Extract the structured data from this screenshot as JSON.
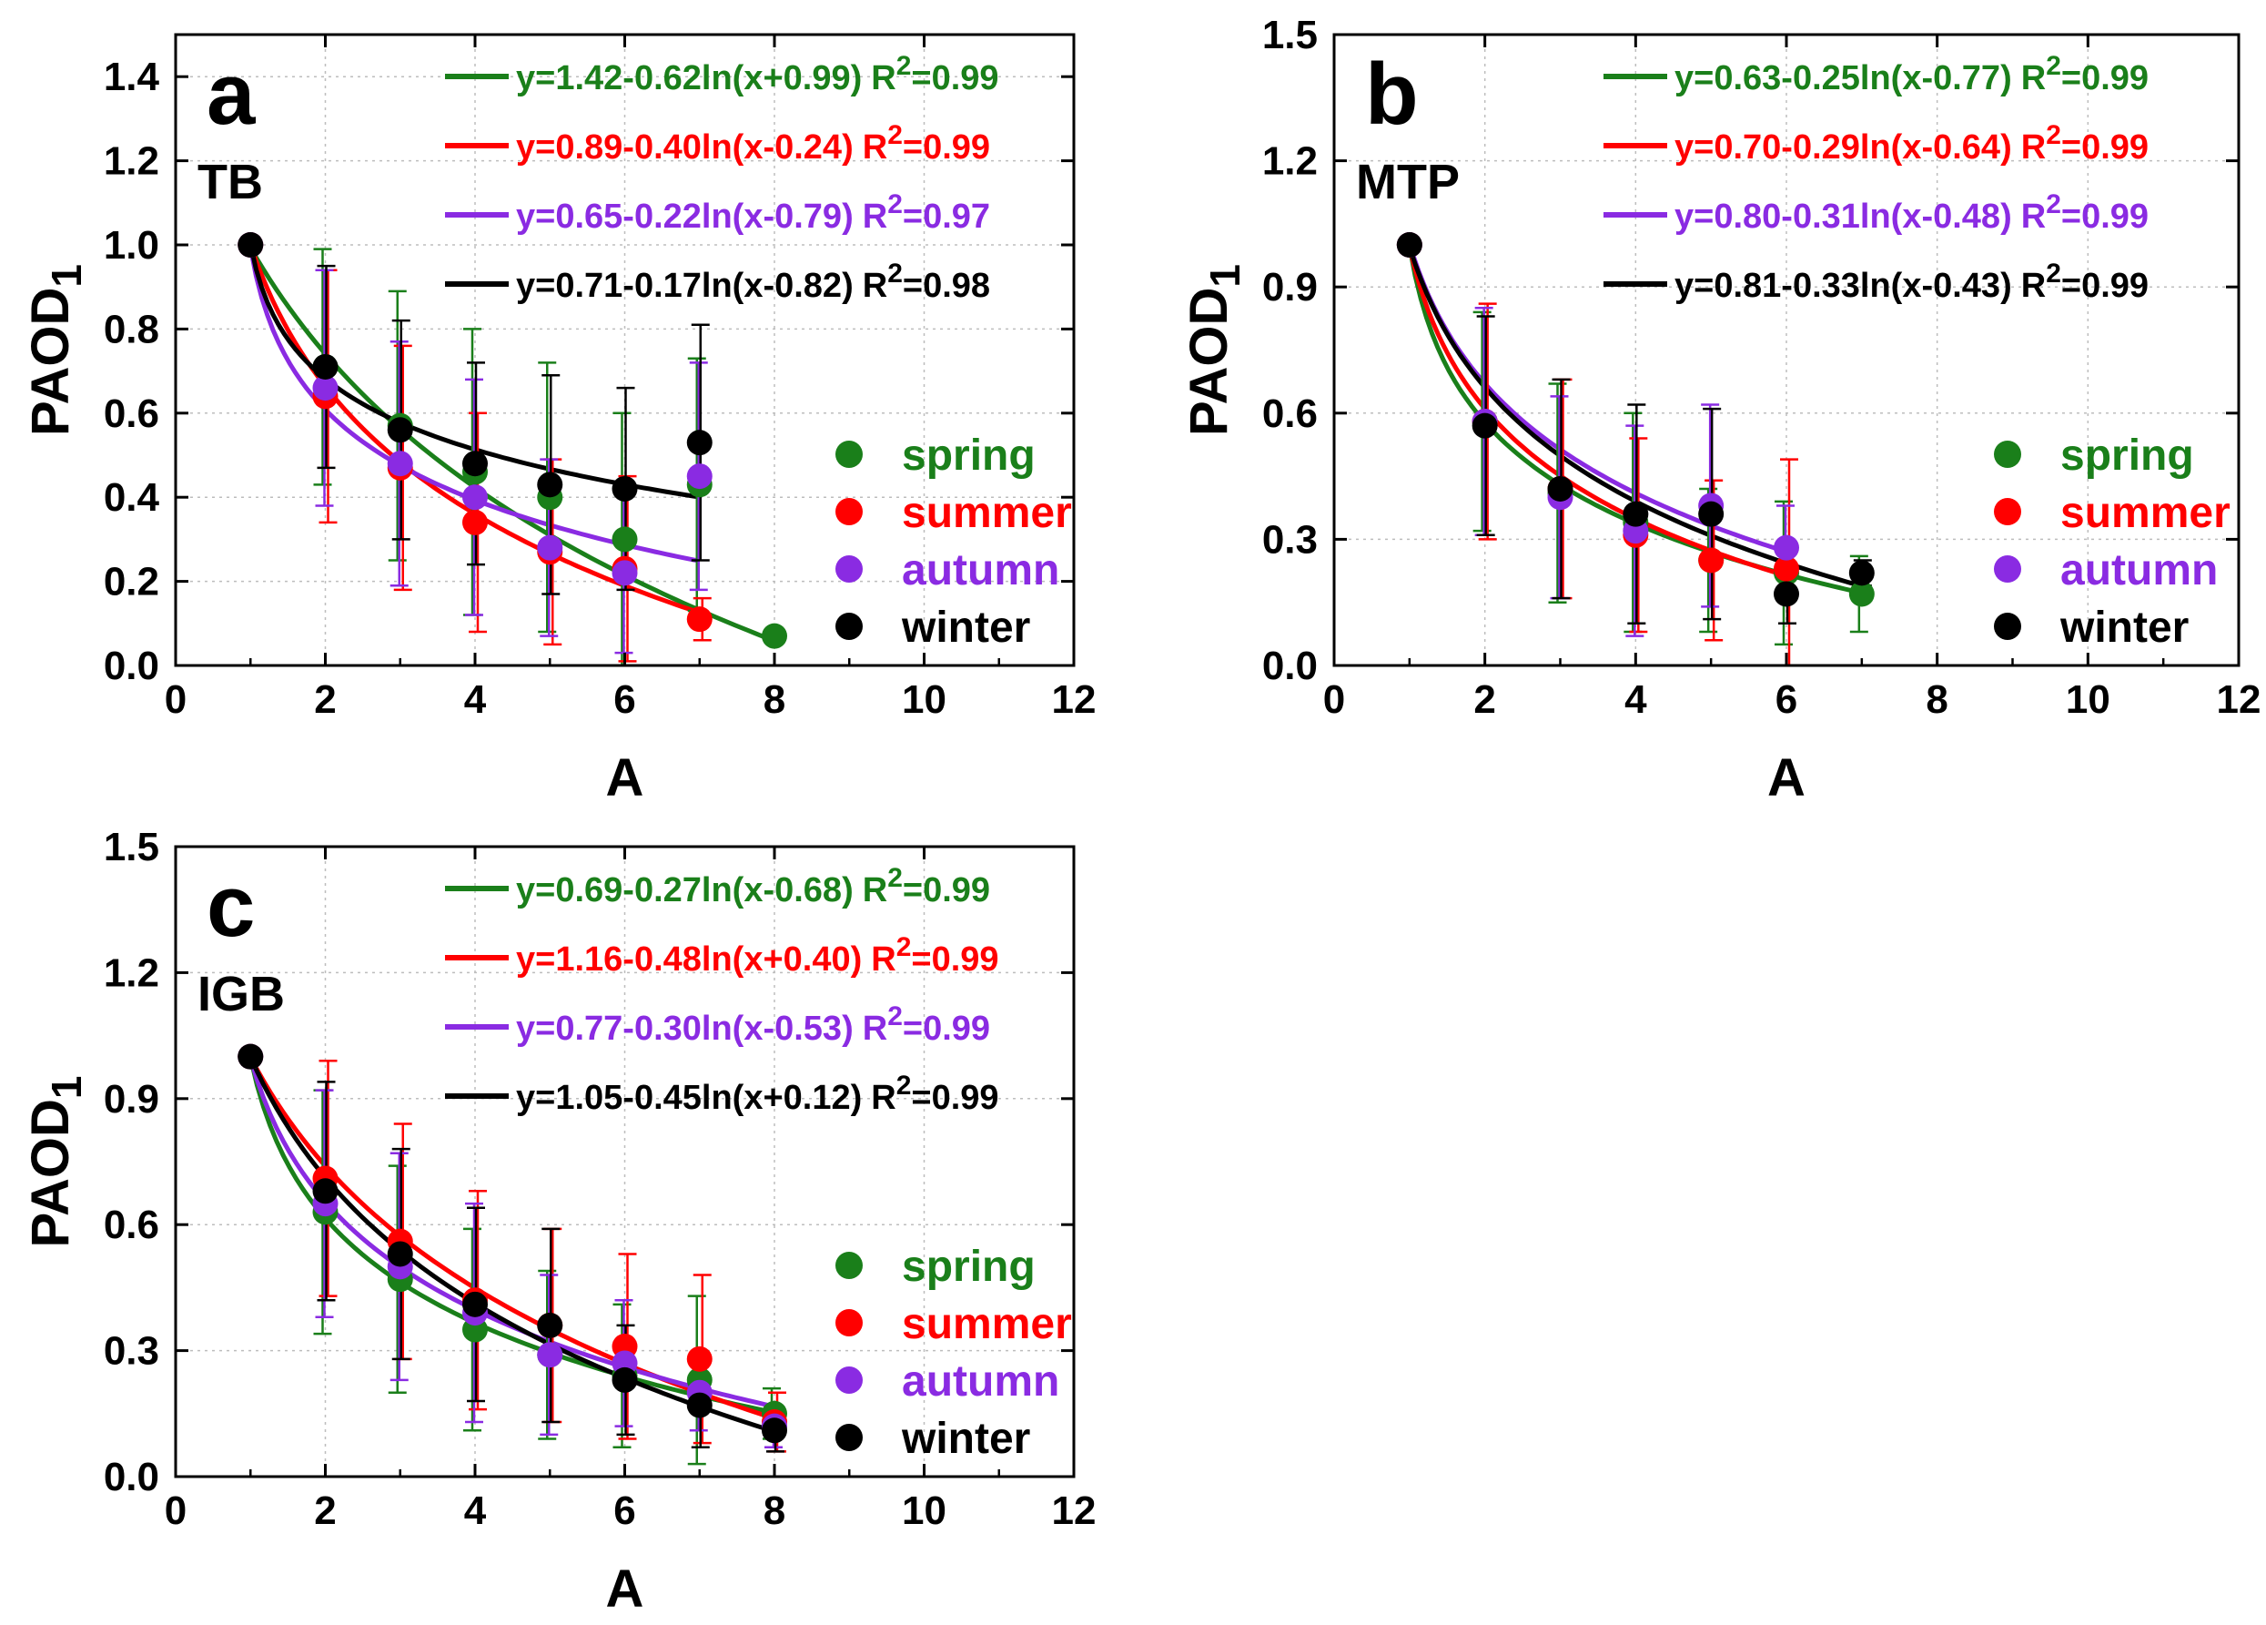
{
  "chart_data": [
    {
      "id": "a",
      "type": "scatter",
      "panel_letter": "a",
      "region": "TB",
      "xlabel": "A",
      "ylabel": "PAOD",
      "ylabel_sub": "1",
      "xlim": [
        0,
        12
      ],
      "ylim": [
        0,
        1.5
      ],
      "xticks": [
        "0",
        "2",
        "4",
        "6",
        "8",
        "10",
        "12"
      ],
      "yticks": [
        "0.0",
        "0.2",
        "0.4",
        "0.6",
        "0.8",
        "1.0",
        "1.2",
        "1.4"
      ],
      "ytick_values": [
        0,
        0.2,
        0.4,
        0.6,
        0.8,
        1.0,
        1.2,
        1.4
      ],
      "grid": true,
      "legend_position": "lower-right",
      "equations_position": "top-right",
      "series": [
        {
          "name": "spring",
          "color": "#1a7f1a",
          "x": [
            1,
            2,
            3,
            4,
            5,
            6,
            7,
            8
          ],
          "y": [
            1.0,
            0.71,
            0.57,
            0.46,
            0.4,
            0.3,
            0.43,
            0.07
          ],
          "err": [
            0,
            0.28,
            0.32,
            0.34,
            0.32,
            0.3,
            0.3,
            0
          ],
          "fit": {
            "a": 1.42,
            "b": 0.62,
            "c": 0.99,
            "x_range": [
              1,
              8
            ]
          },
          "equation": "y=1.42-0.62ln(x+0.99)",
          "r2_label": "R",
          "r2_sup": "2",
          "r2_value": "=0.99"
        },
        {
          "name": "summer",
          "color": "#ff0000",
          "x": [
            1,
            2,
            3,
            4,
            5,
            6,
            7
          ],
          "y": [
            1.0,
            0.64,
            0.47,
            0.34,
            0.27,
            0.23,
            0.11
          ],
          "err": [
            0,
            0.3,
            0.29,
            0.26,
            0.22,
            0.22,
            0.05
          ],
          "fit": {
            "a": 0.89,
            "b": 0.4,
            "c": -0.24,
            "x_range": [
              1,
              7
            ]
          },
          "equation": "y=0.89-0.40ln(x-0.24)",
          "r2_label": "R",
          "r2_sup": "2",
          "r2_value": "=0.99"
        },
        {
          "name": "autumn",
          "color": "#8a2be2",
          "x": [
            1,
            2,
            3,
            4,
            5,
            6,
            7
          ],
          "y": [
            1.0,
            0.66,
            0.48,
            0.4,
            0.28,
            0.22,
            0.45
          ],
          "err": [
            0,
            0.28,
            0.29,
            0.28,
            0.21,
            0.19,
            0.27
          ],
          "fit": {
            "a": 0.65,
            "b": 0.22,
            "c": -0.79,
            "x_range": [
              1,
              7
            ]
          },
          "equation": "y=0.65-0.22ln(x-0.79)",
          "r2_label": "R",
          "r2_sup": "2",
          "r2_value": "=0.97"
        },
        {
          "name": "winter",
          "color": "#000000",
          "x": [
            1,
            2,
            3,
            4,
            5,
            6,
            7
          ],
          "y": [
            1.0,
            0.71,
            0.56,
            0.48,
            0.43,
            0.42,
            0.53
          ],
          "err": [
            0,
            0.24,
            0.26,
            0.24,
            0.26,
            0.24,
            0.28
          ],
          "fit": {
            "a": 0.71,
            "b": 0.17,
            "c": -0.82,
            "x_range": [
              1,
              7
            ]
          },
          "equation": "y=0.71-0.17ln(x-0.82)",
          "r2_label": "R",
          "r2_sup": "2",
          "r2_value": "=0.98"
        }
      ]
    },
    {
      "id": "b",
      "type": "scatter",
      "panel_letter": "b",
      "region": "MTP",
      "xlabel": "A",
      "ylabel": "PAOD",
      "ylabel_sub": "1",
      "xlim": [
        0,
        12
      ],
      "ylim": [
        0,
        1.5
      ],
      "xticks": [
        "0",
        "2",
        "4",
        "6",
        "8",
        "10",
        "12"
      ],
      "yticks": [
        "0.0",
        "0.3",
        "0.6",
        "0.9",
        "1.2",
        "1.5"
      ],
      "ytick_values": [
        0,
        0.3,
        0.6,
        0.9,
        1.2,
        1.5
      ],
      "grid": true,
      "legend_position": "lower-right",
      "equations_position": "top-right",
      "series": [
        {
          "name": "spring",
          "color": "#1a7f1a",
          "x": [
            1,
            2,
            3,
            4,
            5,
            6,
            7
          ],
          "y": [
            1.0,
            0.58,
            0.41,
            0.34,
            0.25,
            0.22,
            0.17
          ],
          "err": [
            0,
            0.26,
            0.26,
            0.26,
            0.17,
            0.17,
            0.09
          ],
          "fit": {
            "a": 0.63,
            "b": 0.25,
            "c": -0.77,
            "x_range": [
              1,
              7
            ]
          },
          "equation": "y=0.63-0.25ln(x-0.77)",
          "r2_label": "R",
          "r2_sup": "2",
          "r2_value": "=0.99"
        },
        {
          "name": "summer",
          "color": "#ff0000",
          "x": [
            1,
            2,
            3,
            4,
            5,
            6
          ],
          "y": [
            1.0,
            0.58,
            0.42,
            0.31,
            0.25,
            0.23
          ],
          "err": [
            0,
            0.28,
            0.26,
            0.23,
            0.19,
            0.26
          ],
          "fit": {
            "a": 0.7,
            "b": 0.29,
            "c": -0.64,
            "x_range": [
              1,
              6
            ]
          },
          "equation": "y=0.70-0.29ln(x-0.64)",
          "r2_label": "R",
          "r2_sup": "2",
          "r2_value": "=0.99"
        },
        {
          "name": "autumn",
          "color": "#8a2be2",
          "x": [
            1,
            2,
            3,
            4,
            5,
            6
          ],
          "y": [
            1.0,
            0.58,
            0.4,
            0.32,
            0.38,
            0.28
          ],
          "err": [
            0,
            0.27,
            0.24,
            0.25,
            0.24,
            0.1
          ],
          "fit": {
            "a": 0.8,
            "b": 0.31,
            "c": -0.48,
            "x_range": [
              1,
              6
            ]
          },
          "equation": "y=0.80-0.31ln(x-0.48)",
          "r2_label": "R",
          "r2_sup": "2",
          "r2_value": "=0.99"
        },
        {
          "name": "winter",
          "color": "#000000",
          "x": [
            1,
            2,
            3,
            4,
            5,
            6,
            7
          ],
          "y": [
            1.0,
            0.57,
            0.42,
            0.36,
            0.36,
            0.17,
            0.22
          ],
          "err": [
            0,
            0.26,
            0.26,
            0.26,
            0.25,
            0.07,
            0.03
          ],
          "fit": {
            "a": 0.81,
            "b": 0.33,
            "c": -0.43,
            "x_range": [
              1,
              7
            ]
          },
          "equation": "y=0.81-0.33ln(x-0.43)",
          "r2_label": "R",
          "r2_sup": "2",
          "r2_value": "=0.99"
        }
      ]
    },
    {
      "id": "c",
      "type": "scatter",
      "panel_letter": "c",
      "region": "IGB",
      "xlabel": "A",
      "ylabel": "PAOD",
      "ylabel_sub": "1",
      "xlim": [
        0,
        12
      ],
      "ylim": [
        0,
        1.5
      ],
      "xticks": [
        "0",
        "2",
        "4",
        "6",
        "8",
        "10",
        "12"
      ],
      "yticks": [
        "0.0",
        "0.3",
        "0.6",
        "0.9",
        "1.2",
        "1.5"
      ],
      "ytick_values": [
        0,
        0.3,
        0.6,
        0.9,
        1.2,
        1.5
      ],
      "grid": true,
      "legend_position": "lower-right",
      "equations_position": "top-right",
      "series": [
        {
          "name": "spring",
          "color": "#1a7f1a",
          "x": [
            1,
            2,
            3,
            4,
            5,
            6,
            7,
            8
          ],
          "y": [
            1.0,
            0.63,
            0.47,
            0.35,
            0.29,
            0.24,
            0.23,
            0.15
          ],
          "err": [
            0,
            0.29,
            0.27,
            0.24,
            0.2,
            0.17,
            0.2,
            0.06
          ],
          "fit": {
            "a": 0.69,
            "b": 0.27,
            "c": -0.68,
            "x_range": [
              1,
              8
            ]
          },
          "equation": "y=0.69-0.27ln(x-0.68)",
          "r2_label": "R",
          "r2_sup": "2",
          "r2_value": "=0.99"
        },
        {
          "name": "summer",
          "color": "#ff0000",
          "x": [
            1,
            2,
            3,
            4,
            5,
            6,
            7,
            8
          ],
          "y": [
            1.0,
            0.71,
            0.56,
            0.42,
            0.36,
            0.31,
            0.28,
            0.13
          ],
          "err": [
            0,
            0.28,
            0.28,
            0.26,
            0.23,
            0.22,
            0.2,
            0.07
          ],
          "fit": {
            "a": 1.16,
            "b": 0.48,
            "c": 0.4,
            "x_range": [
              1,
              8
            ]
          },
          "equation": "y=1.16-0.48ln(x+0.40)",
          "r2_label": "R",
          "r2_sup": "2",
          "r2_value": "=0.99"
        },
        {
          "name": "autumn",
          "color": "#8a2be2",
          "x": [
            1,
            2,
            3,
            4,
            5,
            6,
            7,
            8
          ],
          "y": [
            1.0,
            0.65,
            0.5,
            0.39,
            0.29,
            0.27,
            0.2,
            0.12
          ],
          "err": [
            0,
            0.27,
            0.27,
            0.26,
            0.19,
            0.15,
            0.09,
            0.05
          ],
          "fit": {
            "a": 0.77,
            "b": 0.3,
            "c": -0.53,
            "x_range": [
              1,
              8
            ]
          },
          "equation": "y=0.77-0.30ln(x-0.53)",
          "r2_label": "R",
          "r2_sup": "2",
          "r2_value": "=0.99"
        },
        {
          "name": "winter",
          "color": "#000000",
          "x": [
            1,
            2,
            3,
            4,
            5,
            6,
            7,
            8
          ],
          "y": [
            1.0,
            0.68,
            0.53,
            0.41,
            0.36,
            0.23,
            0.17,
            0.11
          ],
          "err": [
            0,
            0.26,
            0.25,
            0.23,
            0.23,
            0.13,
            0.1,
            0.05
          ],
          "fit": {
            "a": 1.05,
            "b": 0.45,
            "c": 0.12,
            "x_range": [
              1,
              8
            ]
          },
          "equation": "y=1.05-0.45ln(x+0.12)",
          "r2_label": "R",
          "r2_sup": "2",
          "r2_value": "=0.99"
        }
      ]
    }
  ]
}
